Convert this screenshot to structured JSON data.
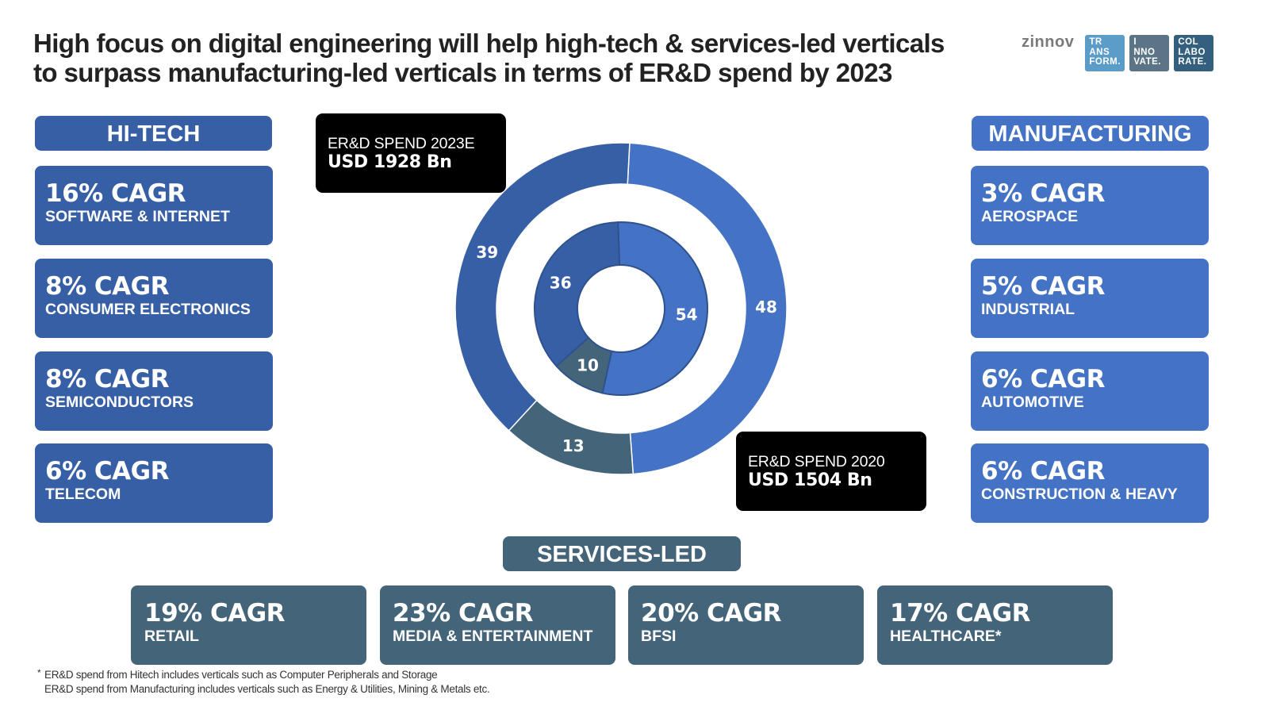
{
  "title_line1": "High focus on digital engineering will help high-tech & services-led verticals",
  "title_line2": "to surpass manufacturing-led verticals in terms of ER&D spend by 2023",
  "logo": {
    "word": "zinnov",
    "tiles": [
      {
        "l1": "TR",
        "l2": "ANS",
        "l3": "FORM.",
        "color": "#5b9cc9"
      },
      {
        "l1": "I",
        "l2": "NNO",
        "l3": "VATE.",
        "color": "#5b7587"
      },
      {
        "l1": "COL",
        "l2": "LABO",
        "l3": "RATE.",
        "color": "#34607e"
      }
    ]
  },
  "colors": {
    "hitech": "#375fa6",
    "manufacturing": "#4472c4",
    "services": "#44647a",
    "callout": "#000000"
  },
  "hitech": {
    "header": "HI-TECH",
    "cards": [
      {
        "cagr": "16% CAGR",
        "name": "SOFTWARE & INTERNET"
      },
      {
        "cagr": "8% CAGR",
        "name": "CONSUMER ELECTRONICS"
      },
      {
        "cagr": "8% CAGR",
        "name": "SEMICONDUCTORS"
      },
      {
        "cagr": "6% CAGR",
        "name": "TELECOM"
      }
    ]
  },
  "manufacturing": {
    "header": "MANUFACTURING",
    "cards": [
      {
        "cagr": "3% CAGR",
        "name": "AEROSPACE"
      },
      {
        "cagr": "5% CAGR",
        "name": "INDUSTRIAL"
      },
      {
        "cagr": "6% CAGR",
        "name": "AUTOMOTIVE"
      },
      {
        "cagr": "6% CAGR",
        "name": "CONSTRUCTION & HEAVY"
      }
    ]
  },
  "services": {
    "header": "SERVICES-LED",
    "cards": [
      {
        "cagr": "19% CAGR",
        "name": "RETAIL"
      },
      {
        "cagr": "23% CAGR",
        "name": "MEDIA & ENTERTAINMENT"
      },
      {
        "cagr": "20% CAGR",
        "name": "BFSI"
      },
      {
        "cagr": "17% CAGR",
        "name": "HEALTHCARE*"
      }
    ]
  },
  "callout_2023": {
    "label": "ER&D SPEND 2023E",
    "value": "USD 1928 Bn"
  },
  "callout_2020": {
    "label": "ER&D SPEND 2020",
    "value": "USD 1504 Bn"
  },
  "footnote": {
    "star": "*",
    "line1": "ER&D spend from Hitech includes verticals such as Computer Peripherals and Storage",
    "line2": "ER&D spend from Manufacturing includes verticals such as Energy & Utilities,  Mining & Metals etc."
  },
  "chart_data": {
    "type": "pie",
    "subtype": "nested-donut",
    "unit": "% share of ER&D spend",
    "direction": "clockwise from top",
    "rings": [
      {
        "name": "ER&D Spend 2023E",
        "position": "outer",
        "total": "USD 1928 Bn",
        "slices": [
          {
            "label": "Manufacturing",
            "value": 48,
            "color": "#4472c4"
          },
          {
            "label": "Services-led",
            "value": 13,
            "color": "#44647a"
          },
          {
            "label": "Hi-Tech",
            "value": 39,
            "color": "#375fa6"
          }
        ]
      },
      {
        "name": "ER&D Spend 2020",
        "position": "inner",
        "total": "USD 1504 Bn",
        "slices": [
          {
            "label": "Manufacturing",
            "value": 54,
            "color": "#4472c4"
          },
          {
            "label": "Services-led",
            "value": 10,
            "color": "#44647a"
          },
          {
            "label": "Hi-Tech",
            "value": 36,
            "color": "#375fa6"
          }
        ]
      }
    ]
  }
}
